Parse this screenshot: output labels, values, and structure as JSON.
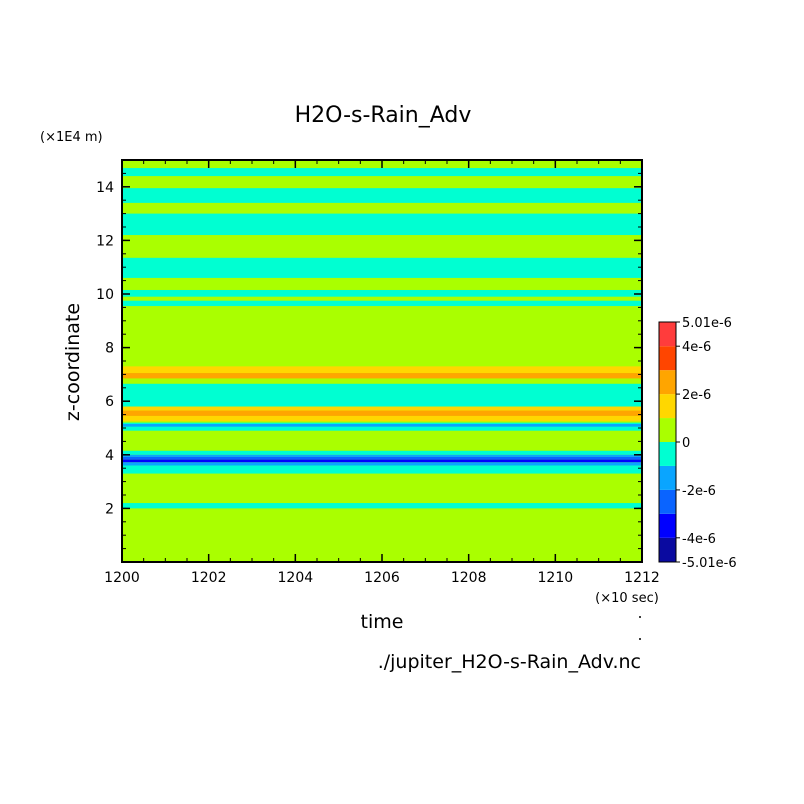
{
  "chart_data": {
    "type": "heatmap",
    "title": "H2O-s-Rain_Adv",
    "xlabel": "time",
    "xunit": "(×10 sec)",
    "ylabel": "z-coordinate",
    "yunit": "(×1E4 m)",
    "source_file": "./jupiter_H2O-s-Rain_Adv.nc",
    "xlim": [
      1200,
      1212
    ],
    "ylim": [
      0,
      15
    ],
    "xticks": [
      1200,
      1202,
      1204,
      1206,
      1208,
      1210,
      1212
    ],
    "yticks": [
      2,
      4,
      6,
      8,
      10,
      12,
      14
    ],
    "colorbar": {
      "levels": [
        -5.01e-06,
        -4e-06,
        -3e-06,
        -2e-06,
        -1e-06,
        0,
        1e-06,
        2e-06,
        3e-06,
        4e-06,
        5.01e-06
      ],
      "colors": [
        "#0a0aa0",
        "#0000ff",
        "#0a64ff",
        "#0aa5ff",
        "#00ffd2",
        "#aaff00",
        "#ffd700",
        "#ffa500",
        "#ff4500",
        "#ff3c3c"
      ],
      "labels": [
        {
          "value": 5.01e-06,
          "text": "5.01e-6"
        },
        {
          "value": 4e-06,
          "text": "4e-6"
        },
        {
          "value": 2e-06,
          "text": "2e-6"
        },
        {
          "value": 0,
          "text": "0"
        },
        {
          "value": -2e-06,
          "text": "-2e-6"
        },
        {
          "value": -4e-06,
          "text": "-4e-6"
        },
        {
          "value": -5.01e-06,
          "text": "-5.01e-6"
        }
      ]
    },
    "background_class": 5,
    "bands": [
      {
        "z0": 14.4,
        "z1": 14.7,
        "class": 4
      },
      {
        "z0": 13.4,
        "z1": 13.95,
        "class": 4
      },
      {
        "z0": 12.2,
        "z1": 13.0,
        "class": 4
      },
      {
        "z0": 10.6,
        "z1": 11.35,
        "class": 4
      },
      {
        "z0": 9.9,
        "z1": 10.15,
        "class": 4
      },
      {
        "z0": 9.55,
        "z1": 9.75,
        "class": 4
      },
      {
        "z0": 7.05,
        "z1": 7.3,
        "class": 6
      },
      {
        "z0": 6.85,
        "z1": 7.05,
        "class": 7
      },
      {
        "z0": 5.8,
        "z1": 6.65,
        "class": 4
      },
      {
        "z0": 5.65,
        "z1": 5.8,
        "class": 6
      },
      {
        "z0": 5.45,
        "z1": 5.65,
        "class": 7
      },
      {
        "z0": 5.25,
        "z1": 5.45,
        "class": 6
      },
      {
        "z0": 4.9,
        "z1": 5.2,
        "class": 4
      },
      {
        "z0": 5.05,
        "z1": 5.15,
        "class": 3
      },
      {
        "z0": 4.0,
        "z1": 4.15,
        "class": 4
      },
      {
        "z0": 3.92,
        "z1": 4.0,
        "class": 3
      },
      {
        "z0": 3.82,
        "z1": 3.92,
        "class": 2
      },
      {
        "z0": 3.72,
        "z1": 3.82,
        "class": 1
      },
      {
        "z0": 3.6,
        "z1": 3.72,
        "class": 3
      },
      {
        "z0": 3.3,
        "z1": 3.6,
        "class": 4
      },
      {
        "z0": 2.0,
        "z1": 2.2,
        "class": 4
      }
    ]
  }
}
